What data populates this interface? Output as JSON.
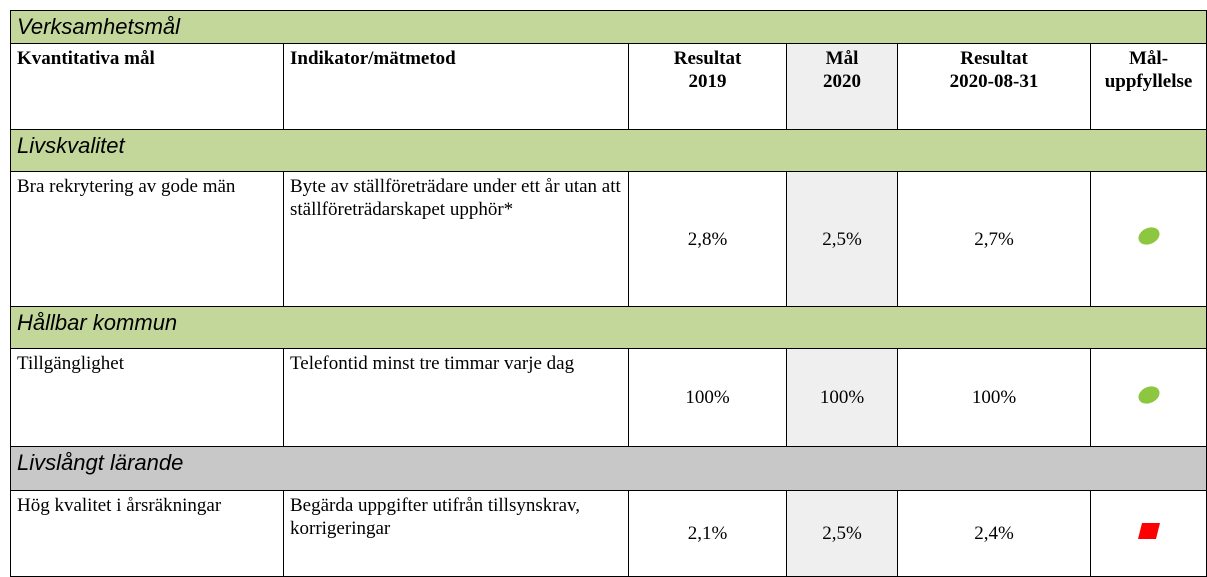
{
  "title": "Verksamhetsmål",
  "columns": [
    "Kvantitativa mål",
    "Indikator/mätmetod",
    "Resultat\n2019",
    "Mål\n2020",
    "Resultat\n2020-08-31",
    "Mål-\nuppfyllelse"
  ],
  "sections": [
    {
      "name": "Livskvalitet",
      "rows": [
        [
          "Bra rekrytering av gode män",
          "Byte av ställföreträdare under ett år utan att ställföreträdarskapet upphör*",
          "2,8%",
          "2,5%",
          "2,7%"
        ]
      ]
    },
    {
      "name": "Hållbar kommun",
      "rows": [
        [
          "Tillgänglighet",
          "Telefontid minst tre timmar varje dag",
          "100%",
          "100%",
          "100%"
        ]
      ]
    },
    {
      "name": "Livslångt lärande",
      "rows": [
        [
          "Hög kvalitet i årsräkningar",
          "Begärda uppgifter utifrån tillsynskrav, korrigeringar",
          "2,1%",
          "2,5%",
          "2,4%"
        ]
      ]
    }
  ]
}
